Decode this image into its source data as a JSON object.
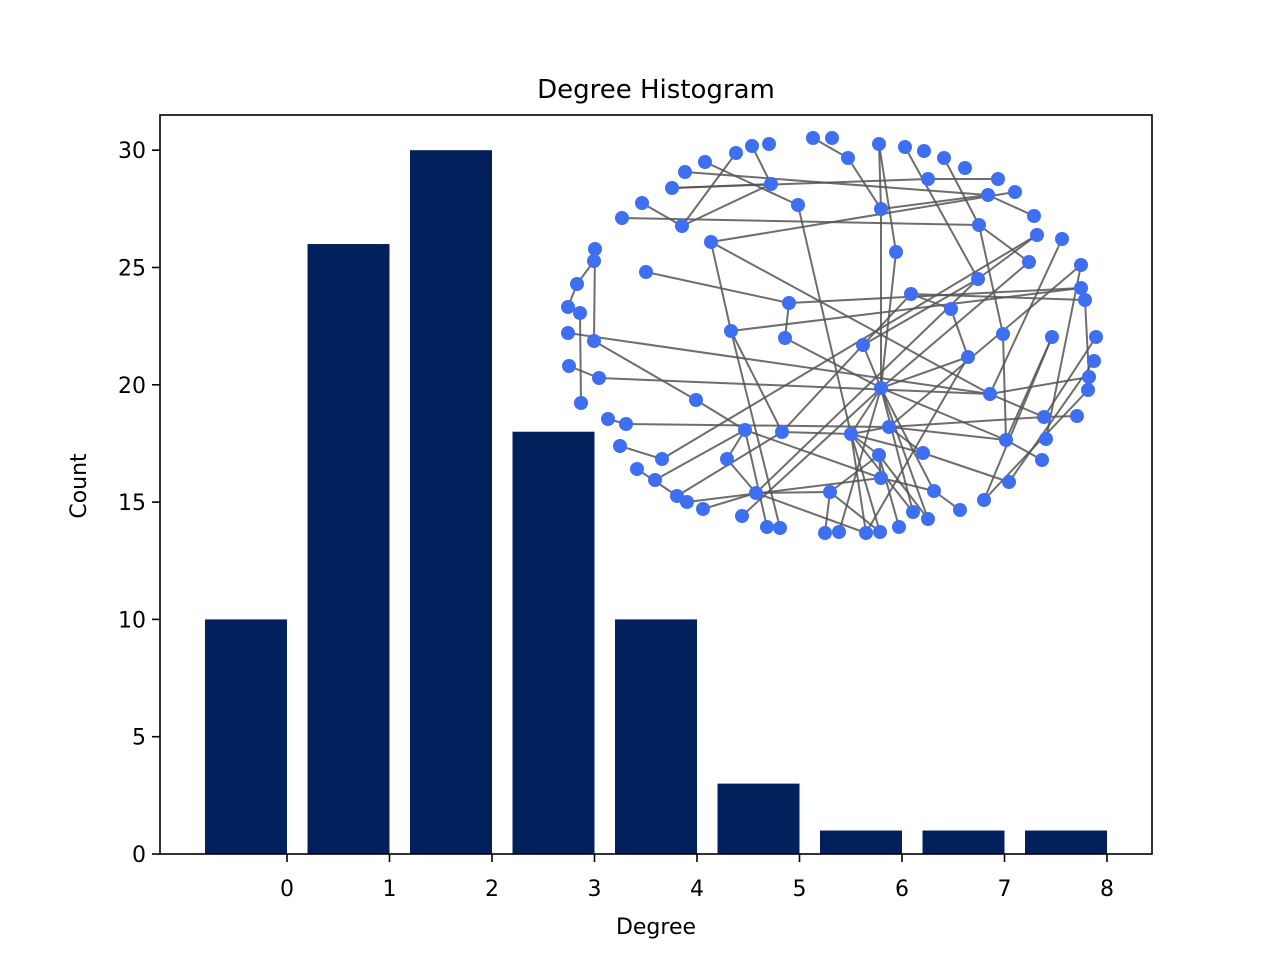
{
  "chart_data": {
    "type": "bar",
    "title": "Degree Histogram",
    "xlabel": "Degree",
    "ylabel": "Count",
    "categories": [
      0,
      1,
      2,
      3,
      4,
      5,
      6,
      7,
      8
    ],
    "values": [
      10,
      26,
      30,
      18,
      10,
      3,
      1,
      1,
      1
    ],
    "xticks": [
      "0",
      "1",
      "2",
      "3",
      "4",
      "5",
      "6",
      "7",
      "8"
    ],
    "yticks": [
      0,
      5,
      10,
      15,
      20,
      25,
      30
    ],
    "ylim": [
      0,
      31.5
    ],
    "grid": false,
    "colors": {
      "bar": "#02215c",
      "node": "#3d6ff0",
      "edge": "#555555"
    },
    "inset": {
      "type": "network graph",
      "node_count": 100
    }
  }
}
